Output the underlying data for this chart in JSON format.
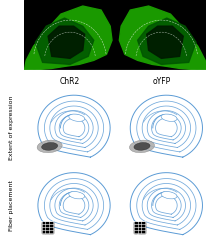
{
  "col_labels": [
    "ChR2",
    "oYFP"
  ],
  "row_labels": [
    "Extent of expression",
    "Fiber placement"
  ],
  "bg_color": "#ffffff",
  "brain_color": "#5b9bd5",
  "brain_lw": 0.7,
  "col_label_fontsize": 5.5,
  "row_label_fontsize": 4.5,
  "example_label_fontsize": 4.5,
  "expression_outer_color": "#888888",
  "expression_inner_color": "#333333",
  "fiber_color": "#111111"
}
